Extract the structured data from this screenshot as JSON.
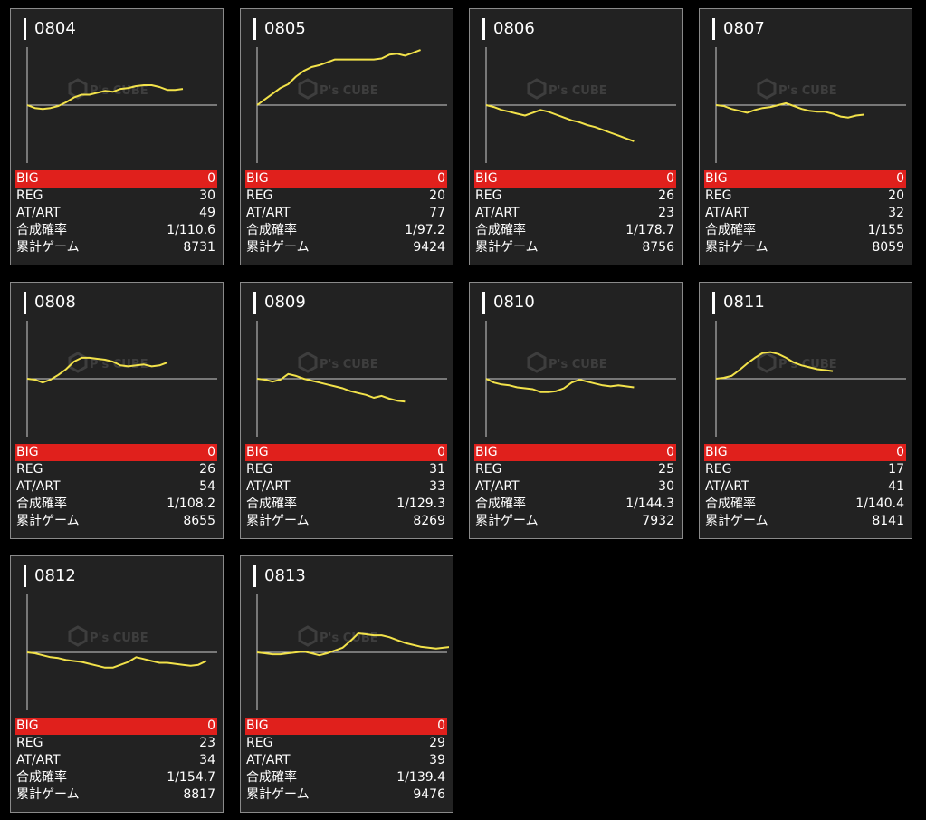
{
  "labels": {
    "big": "BIG",
    "reg": "REG",
    "atart": "AT/ART",
    "prob": "合成確率",
    "games": "累計ゲーム"
  },
  "colors": {
    "line": "#f2e24a",
    "big_bar": "#e0201c",
    "background": "#000000",
    "card": "#222222",
    "axis": "#cfcfcf",
    "watermark": "#555555"
  },
  "watermark": {
    "brand": "P's CUBE"
  },
  "machines": [
    {
      "id": "0804",
      "big": "0",
      "reg": "30",
      "atart": "49",
      "prob": "1/110.6",
      "games": "8731",
      "series": [
        0,
        -3,
        -4,
        -3,
        -1,
        3,
        8,
        11,
        11,
        13,
        15,
        14,
        17,
        18,
        20,
        21,
        21,
        19,
        16,
        16,
        17
      ]
    },
    {
      "id": "0805",
      "big": "0",
      "reg": "20",
      "atart": "77",
      "prob": "1/97.2",
      "games": "9424",
      "series": [
        0,
        6,
        12,
        18,
        22,
        30,
        36,
        40,
        42,
        45,
        48,
        48,
        48,
        48,
        48,
        48,
        49,
        53,
        54,
        52,
        55,
        58
      ]
    },
    {
      "id": "0806",
      "big": "0",
      "reg": "26",
      "atart": "23",
      "prob": "1/178.7",
      "games": "8756",
      "series": [
        0,
        -2,
        -5,
        -7,
        -9,
        -11,
        -8,
        -5,
        -7,
        -10,
        -13,
        -16,
        -18,
        -21,
        -23,
        -26,
        -29,
        -32,
        -35,
        -38
      ]
    },
    {
      "id": "0807",
      "big": "0",
      "reg": "20",
      "atart": "32",
      "prob": "1/155",
      "games": "8059",
      "series": [
        0,
        -1,
        -4,
        -6,
        -8,
        -5,
        -3,
        -2,
        0,
        2,
        -1,
        -4,
        -6,
        -7,
        -7,
        -9,
        -12,
        -13,
        -11,
        -10
      ]
    },
    {
      "id": "0808",
      "big": "0",
      "reg": "26",
      "atart": "54",
      "prob": "1/108.2",
      "games": "8655",
      "series": [
        0,
        -1,
        -4,
        -1,
        4,
        10,
        18,
        22,
        22,
        21,
        20,
        18,
        14,
        13,
        14,
        15,
        13,
        14,
        17
      ]
    },
    {
      "id": "0809",
      "big": "0",
      "reg": "31",
      "atart": "33",
      "prob": "1/129.3",
      "games": "8269",
      "series": [
        0,
        -1,
        -3,
        -1,
        5,
        3,
        0,
        -2,
        -4,
        -6,
        -8,
        -10,
        -13,
        -15,
        -17,
        -20,
        -18,
        -21,
        -23,
        -24
      ]
    },
    {
      "id": "0810",
      "big": "0",
      "reg": "25",
      "atart": "30",
      "prob": "1/144.3",
      "games": "7932",
      "series": [
        0,
        -4,
        -6,
        -7,
        -9,
        -10,
        -11,
        -14,
        -14,
        -13,
        -10,
        -4,
        -1,
        -3,
        -5,
        -7,
        -8,
        -7,
        -8,
        -9
      ]
    },
    {
      "id": "0811",
      "big": "0",
      "reg": "17",
      "atart": "41",
      "prob": "1/140.4",
      "games": "8141",
      "series": [
        0,
        1,
        3,
        9,
        16,
        22,
        27,
        28,
        26,
        22,
        17,
        14,
        12,
        10,
        9,
        8
      ]
    },
    {
      "id": "0812",
      "big": "0",
      "reg": "23",
      "atart": "34",
      "prob": "1/154.7",
      "games": "8817",
      "series": [
        0,
        -1,
        -3,
        -5,
        -6,
        -8,
        -9,
        -10,
        -12,
        -14,
        -16,
        -16,
        -13,
        -10,
        -5,
        -7,
        -9,
        -11,
        -11,
        -12,
        -13,
        -14,
        -13,
        -9
      ]
    },
    {
      "id": "0813",
      "big": "0",
      "reg": "29",
      "atart": "39",
      "prob": "1/139.4",
      "games": "9476",
      "series": [
        0,
        -1,
        -2,
        -2,
        -1,
        0,
        1,
        -1,
        -3,
        -1,
        2,
        5,
        12,
        20,
        19,
        18,
        18,
        16,
        13,
        10,
        8,
        6,
        5,
        4,
        5,
        6,
        7
      ]
    }
  ]
}
